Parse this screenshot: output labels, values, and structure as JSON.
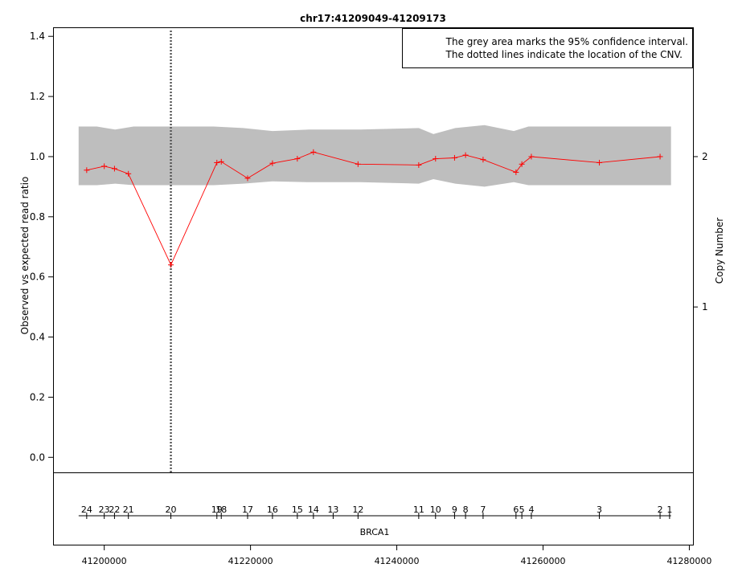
{
  "chart_data": {
    "type": "line",
    "title": "chr17:41209049-41209173",
    "ylabel": "Observed vs expected read ratio",
    "y2label": "Copy Number",
    "ylim": [
      -0.05,
      1.43
    ],
    "yticks": [
      0.0,
      0.2,
      0.4,
      0.6,
      0.8,
      1.0,
      1.2,
      1.4
    ],
    "ytick_labels": [
      "0.0",
      "0.2",
      "0.4",
      "0.6",
      "0.8",
      "1.0",
      "1.2",
      "1.4"
    ],
    "y2ticks": [
      1,
      2
    ],
    "y2tick_values": [
      0.5,
      1.0
    ],
    "xlim": [
      41193000,
      41280500
    ],
    "xticks": [
      41200000,
      41220000,
      41240000,
      41260000,
      41280000
    ],
    "xtick_labels": [
      "41200000",
      "41220000",
      "41240000",
      "41260000",
      "41280000"
    ],
    "legend": {
      "position": "top-right",
      "lines": [
        "The grey area marks the 95% confidence interval.",
        "The dotted lines indicate the location of the CNV."
      ]
    },
    "cnv_line_x": 41209110,
    "gene_label": "BRCA1",
    "gene_range": [
      41196500,
      41277500
    ],
    "series": [
      {
        "color": "#ff0000",
        "x": [
          41197600,
          41200000,
          41201400,
          41203300,
          41209110,
          41215400,
          41216000,
          41219600,
          41223000,
          41226400,
          41228600,
          41234700,
          41243000,
          41245300,
          41247900,
          41249400,
          41251800,
          41256300,
          41257100,
          41258400,
          41267700,
          41276000
        ],
        "y": [
          0.955,
          0.968,
          0.96,
          0.943,
          0.64,
          0.98,
          0.983,
          0.928,
          0.978,
          0.993,
          1.015,
          0.975,
          0.972,
          0.993,
          0.996,
          1.005,
          0.99,
          0.948,
          0.975,
          1.0,
          0.98,
          1.0
        ]
      }
    ],
    "ci_band": {
      "x": [
        41196500,
        41199000,
        41201500,
        41204000,
        41209110,
        41215000,
        41219000,
        41223000,
        41228000,
        41235000,
        41243000,
        41245000,
        41248000,
        41252000,
        41256000,
        41258000,
        41262000,
        41268000,
        41273000,
        41277500
      ],
      "upper": [
        1.1,
        1.1,
        1.09,
        1.1,
        1.1,
        1.1,
        1.095,
        1.085,
        1.09,
        1.09,
        1.095,
        1.075,
        1.095,
        1.105,
        1.085,
        1.1,
        1.1,
        1.1,
        1.1,
        1.1
      ],
      "lower": [
        0.905,
        0.905,
        0.91,
        0.905,
        0.905,
        0.905,
        0.91,
        0.918,
        0.915,
        0.915,
        0.91,
        0.925,
        0.91,
        0.9,
        0.915,
        0.905,
        0.905,
        0.905,
        0.905,
        0.905
      ]
    },
    "exons": [
      {
        "label": "24",
        "x": 41197600
      },
      {
        "label": "23",
        "x": 41200000
      },
      {
        "label": "22",
        "x": 41201400
      },
      {
        "label": "21",
        "x": 41203300
      },
      {
        "label": "20",
        "x": 41209110
      },
      {
        "label": "19",
        "x": 41215400
      },
      {
        "label": "18",
        "x": 41216000
      },
      {
        "label": "17",
        "x": 41219600
      },
      {
        "label": "16",
        "x": 41223000
      },
      {
        "label": "15",
        "x": 41226400
      },
      {
        "label": "14",
        "x": 41228600
      },
      {
        "label": "13",
        "x": 41231300
      },
      {
        "label": "12",
        "x": 41234700
      },
      {
        "label": "11",
        "x": 41243000
      },
      {
        "label": "10",
        "x": 41245300
      },
      {
        "label": "9",
        "x": 41247900
      },
      {
        "label": "8",
        "x": 41249400
      },
      {
        "label": "7",
        "x": 41251800
      },
      {
        "label": "6",
        "x": 41256300
      },
      {
        "label": "5",
        "x": 41257100
      },
      {
        "label": "4",
        "x": 41258400
      },
      {
        "label": "3",
        "x": 41267700
      },
      {
        "label": "2",
        "x": 41276000
      },
      {
        "label": "1",
        "x": 41277300
      }
    ]
  }
}
